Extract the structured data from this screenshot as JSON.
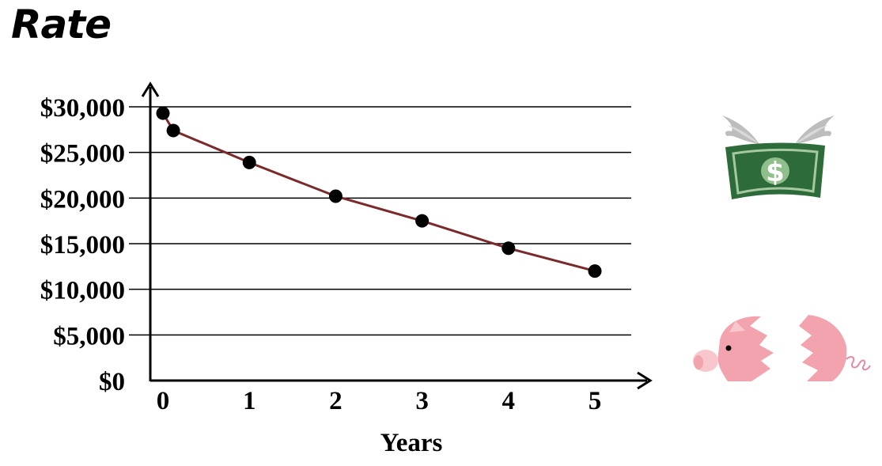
{
  "page": {
    "title": "Rate"
  },
  "chart_data": {
    "type": "line",
    "title": "",
    "xlabel": "Years",
    "ylabel": "",
    "x_ticks": [
      0,
      1,
      2,
      3,
      4,
      5
    ],
    "y_ticks": [
      0,
      5000,
      10000,
      15000,
      20000,
      25000,
      30000
    ],
    "y_tick_labels": [
      "$0",
      "$5,000",
      "$10,000",
      "$15,000",
      "$20,000",
      "$25,000",
      "$30,000"
    ],
    "xlim": [
      0,
      5
    ],
    "ylim": [
      0,
      30000
    ],
    "grid": "horizontal",
    "series": [
      {
        "points": [
          {
            "x": 0,
            "y": 29300
          },
          {
            "x": 0.12,
            "y": 27400
          },
          {
            "x": 1,
            "y": 23900
          },
          {
            "x": 2,
            "y": 20200
          },
          {
            "x": 3,
            "y": 17500
          },
          {
            "x": 4,
            "y": 14500
          },
          {
            "x": 5,
            "y": 12000
          }
        ]
      }
    ],
    "colors": {
      "line": "#7a2a2a",
      "points": "#000000",
      "grid": "#000000"
    }
  },
  "illustrations": {
    "flying_money_icon": "flying-money-icon",
    "money_symbol": "$",
    "broken_piggy_icon": "broken-piggy-bank-icon",
    "money_color": "#2e6b3a",
    "piggy_color": "#f2a3ad"
  }
}
